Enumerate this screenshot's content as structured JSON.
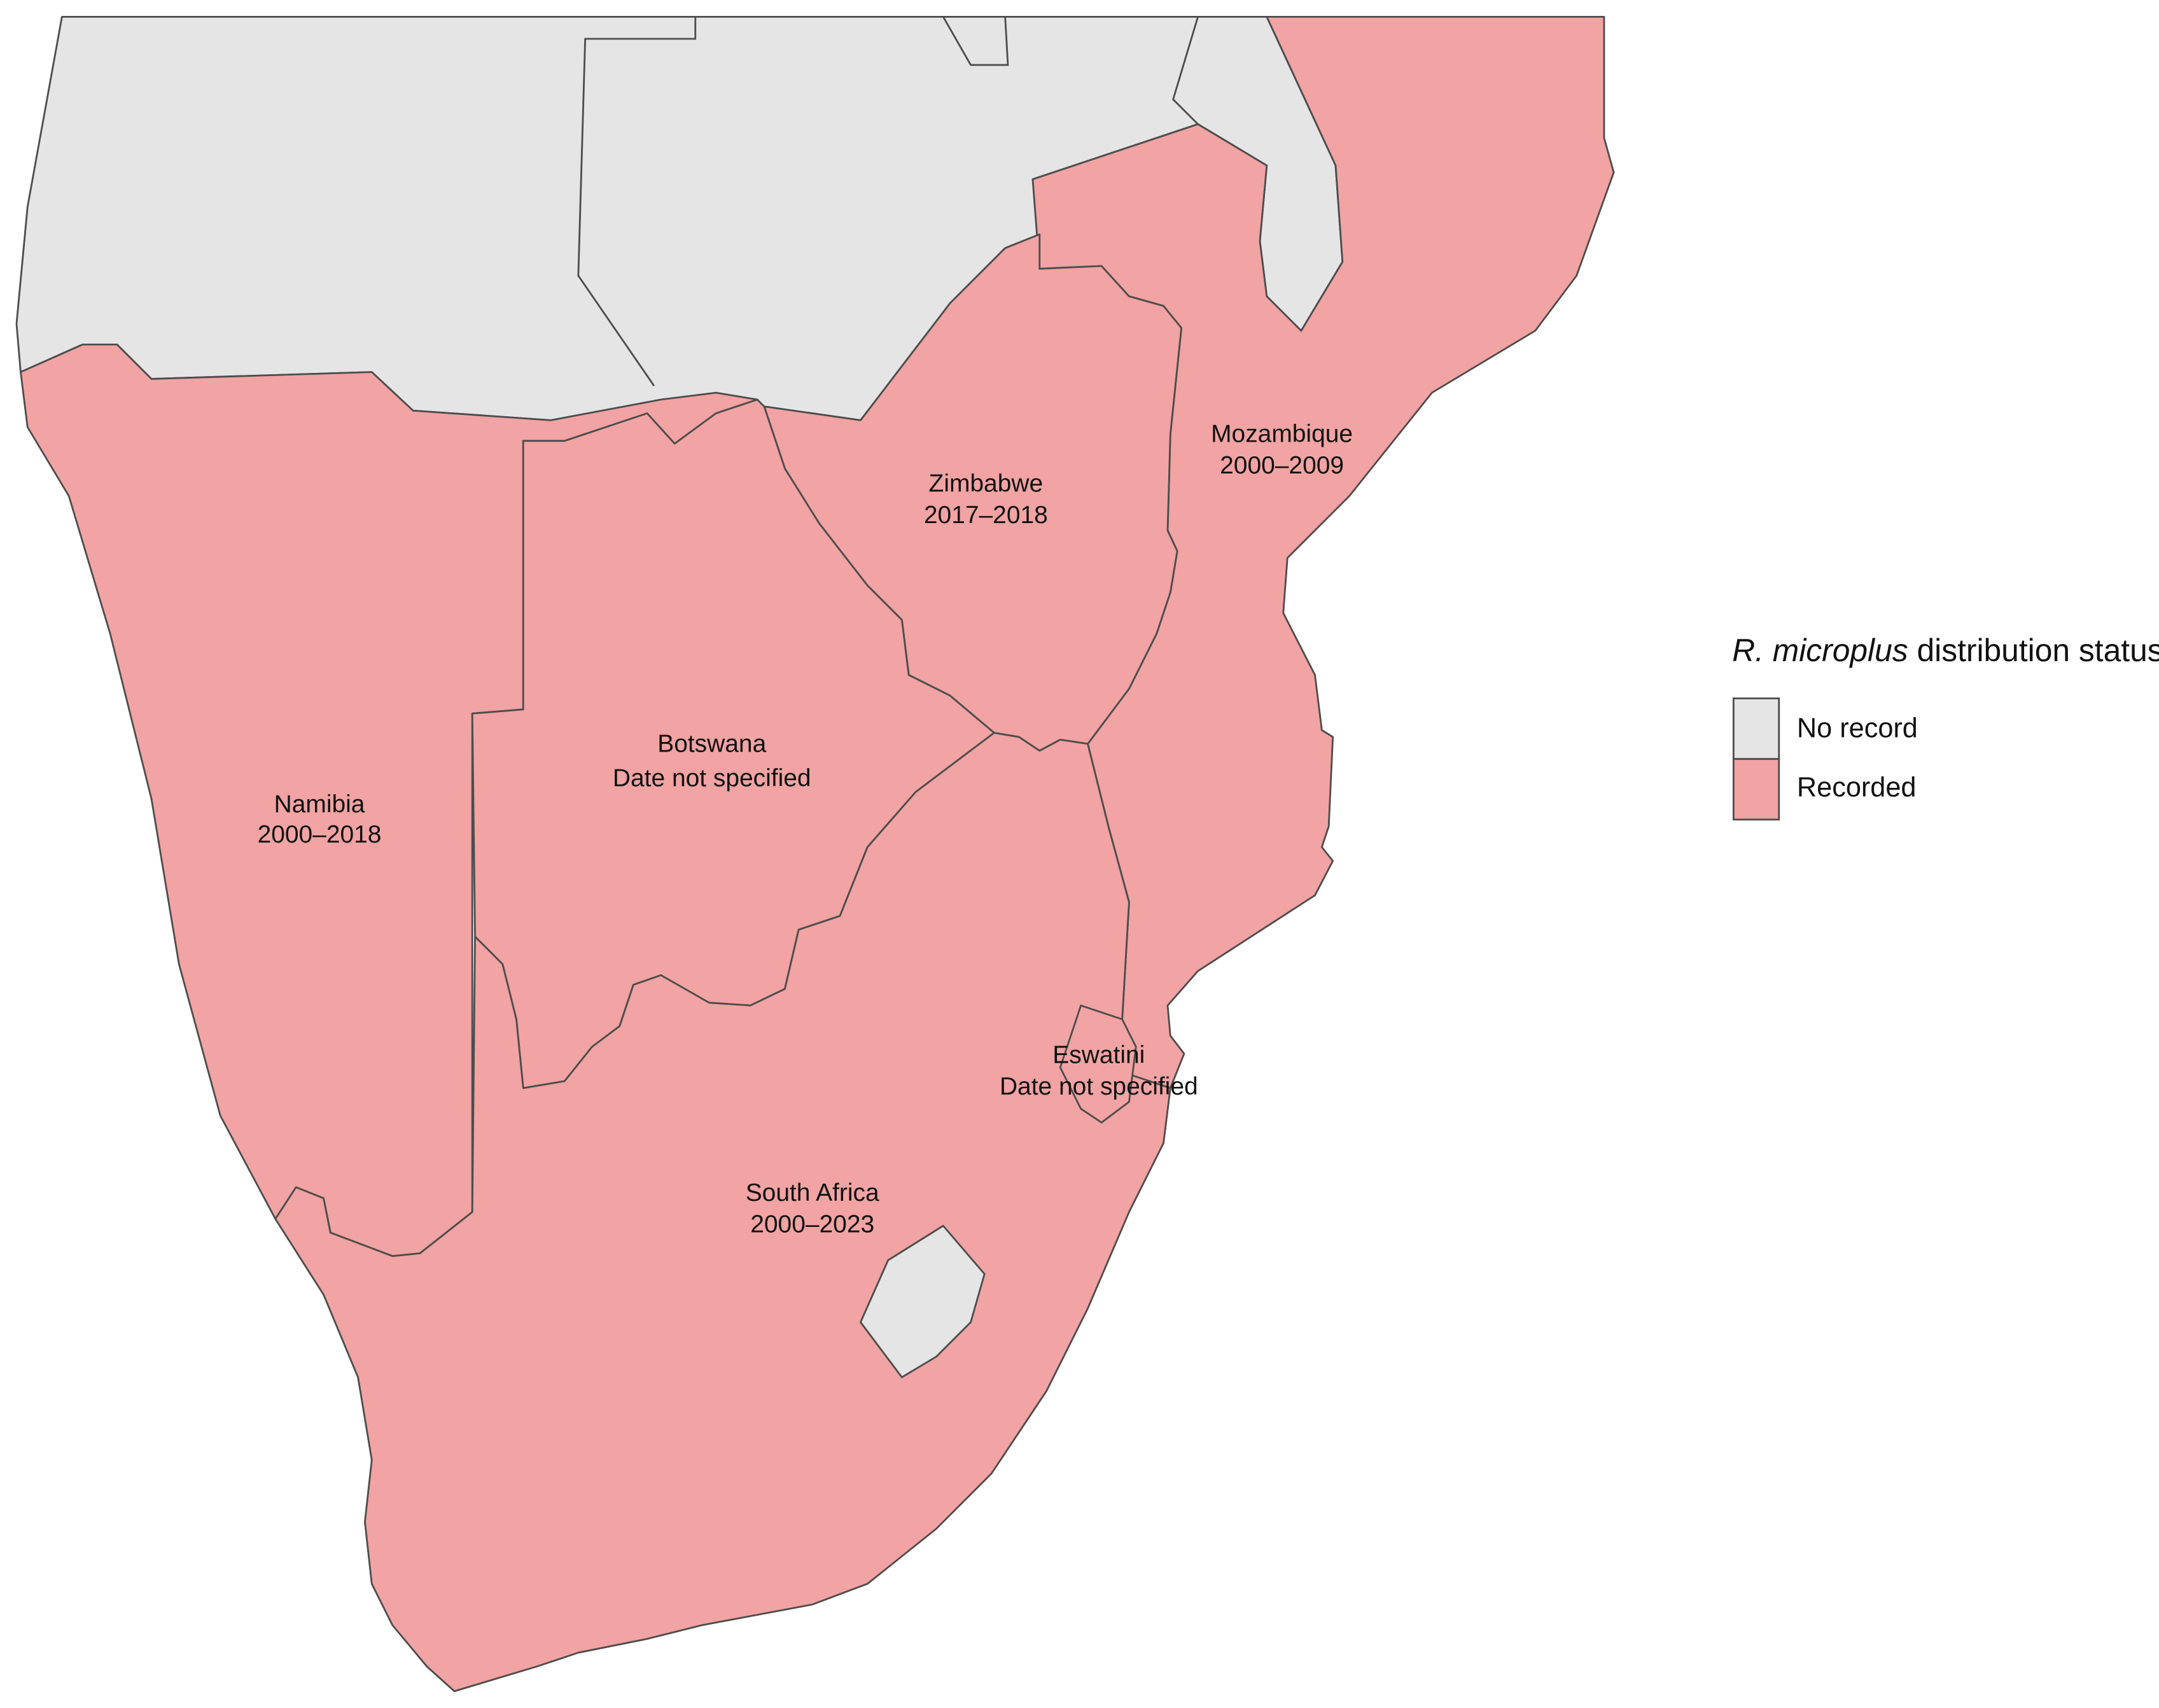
{
  "legend": {
    "title_italic": "R. microplus",
    "title_rest": "distribution status",
    "items": [
      {
        "label": "No record",
        "color": "#e5e5e5"
      },
      {
        "label": "Recorded",
        "color": "#f2a3a3"
      }
    ]
  },
  "regions": [
    {
      "name": "Namibia",
      "period": "2000–2018"
    },
    {
      "name": "Botswana",
      "period": "Date not specified"
    },
    {
      "name": "Zimbabwe",
      "period": "2017–2018"
    },
    {
      "name": "Mozambique",
      "period": "2000–2009"
    },
    {
      "name": "Eswatini",
      "period": "Date not specified"
    },
    {
      "name": "South Africa",
      "period": "2000–2023"
    }
  ]
}
